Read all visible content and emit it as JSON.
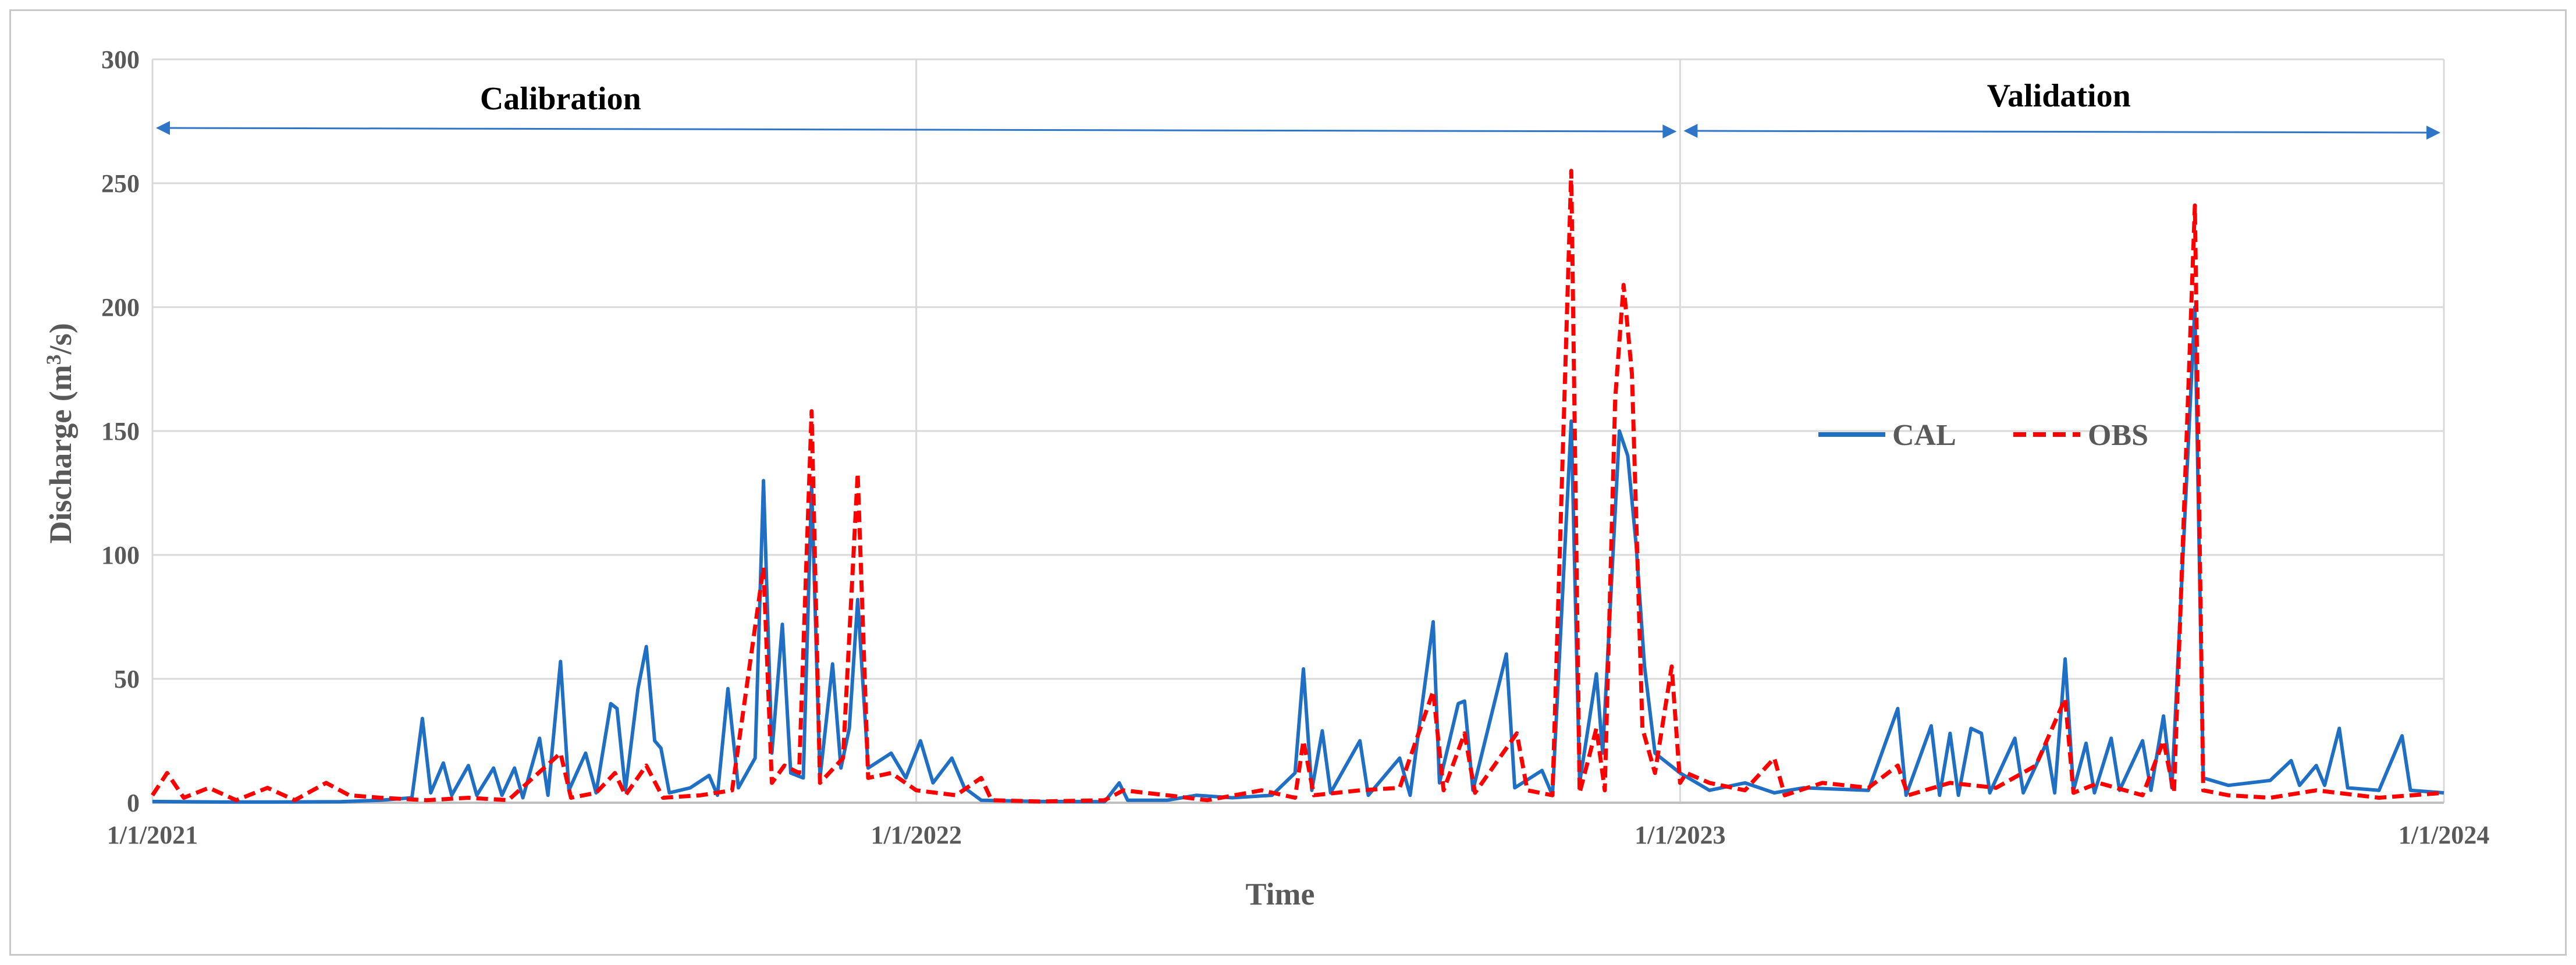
{
  "chart_data": {
    "type": "line",
    "xlabel": "Time",
    "ylabel_main": "Discharge (m",
    "ylabel_sup": "3",
    "ylabel_tail": "/s)",
    "ylim": [
      0,
      300
    ],
    "yticks": [
      0,
      50,
      100,
      150,
      200,
      250,
      300
    ],
    "xlim": [
      "2021-01-01",
      "2024-01-01"
    ],
    "xticks": [
      {
        "date": "2021-01-01",
        "label": "1/1/2021"
      },
      {
        "date": "2022-01-01",
        "label": "1/1/2022"
      },
      {
        "date": "2023-01-01",
        "label": "1/1/2023"
      },
      {
        "date": "2024-01-01",
        "label": "1/1/2024"
      }
    ],
    "grid": true,
    "legend_position": "right-middle",
    "periods": [
      {
        "label": "Calibration",
        "start": "2021-01-01",
        "end": "2023-01-01"
      },
      {
        "label": "Validation",
        "start": "2023-01-01",
        "end": "2024-01-01"
      }
    ],
    "series": [
      {
        "name": "CAL",
        "color": "#1f6fc5",
        "style": "solid",
        "points": [
          [
            "2021-01-01",
            0.5
          ],
          [
            "2021-02-01",
            0.3
          ],
          [
            "2021-03-01",
            0.3
          ],
          [
            "2021-04-01",
            0.4
          ],
          [
            "2021-04-20",
            1
          ],
          [
            "2021-05-05",
            2
          ],
          [
            "2021-05-10",
            34
          ],
          [
            "2021-05-14",
            4
          ],
          [
            "2021-05-20",
            16
          ],
          [
            "2021-05-24",
            3
          ],
          [
            "2021-06-01",
            15
          ],
          [
            "2021-06-05",
            3
          ],
          [
            "2021-06-13",
            14
          ],
          [
            "2021-06-17",
            3
          ],
          [
            "2021-06-23",
            14
          ],
          [
            "2021-06-27",
            2
          ],
          [
            "2021-07-05",
            26
          ],
          [
            "2021-07-09",
            3
          ],
          [
            "2021-07-15",
            57
          ],
          [
            "2021-07-19",
            5
          ],
          [
            "2021-07-27",
            20
          ],
          [
            "2021-08-01",
            4
          ],
          [
            "2021-08-08",
            40
          ],
          [
            "2021-08-11",
            38
          ],
          [
            "2021-08-15",
            5
          ],
          [
            "2021-08-21",
            46
          ],
          [
            "2021-08-25",
            63
          ],
          [
            "2021-08-29",
            25
          ],
          [
            "2021-09-01",
            22
          ],
          [
            "2021-09-05",
            4
          ],
          [
            "2021-09-15",
            6
          ],
          [
            "2021-09-24",
            11
          ],
          [
            "2021-09-28",
            3
          ],
          [
            "2021-10-03",
            46
          ],
          [
            "2021-10-08",
            6
          ],
          [
            "2021-10-16",
            18
          ],
          [
            "2021-10-20",
            130
          ],
          [
            "2021-10-24",
            20
          ],
          [
            "2021-10-29",
            72
          ],
          [
            "2021-11-02",
            12
          ],
          [
            "2021-11-08",
            10
          ],
          [
            "2021-11-12",
            128
          ],
          [
            "2021-11-16",
            10
          ],
          [
            "2021-11-22",
            56
          ],
          [
            "2021-11-26",
            14
          ],
          [
            "2021-11-30",
            30
          ],
          [
            "2021-12-04",
            82
          ],
          [
            "2021-12-09",
            14
          ],
          [
            "2021-12-20",
            20
          ],
          [
            "2021-12-27",
            10
          ],
          [
            "2022-01-03",
            25
          ],
          [
            "2022-01-09",
            8
          ],
          [
            "2022-01-18",
            18
          ],
          [
            "2022-01-24",
            6
          ],
          [
            "2022-02-01",
            1
          ],
          [
            "2022-03-01",
            0.5
          ],
          [
            "2022-04-01",
            0.4
          ],
          [
            "2022-04-08",
            8
          ],
          [
            "2022-04-12",
            1
          ],
          [
            "2022-05-01",
            1
          ],
          [
            "2022-05-15",
            3
          ],
          [
            "2022-06-01",
            2
          ],
          [
            "2022-06-20",
            3
          ],
          [
            "2022-07-01",
            12
          ],
          [
            "2022-07-05",
            54
          ],
          [
            "2022-07-09",
            5
          ],
          [
            "2022-07-14",
            29
          ],
          [
            "2022-07-18",
            4
          ],
          [
            "2022-08-01",
            25
          ],
          [
            "2022-08-05",
            3
          ],
          [
            "2022-08-20",
            18
          ],
          [
            "2022-08-25",
            3
          ],
          [
            "2022-09-05",
            73
          ],
          [
            "2022-09-08",
            8
          ],
          [
            "2022-09-17",
            40
          ],
          [
            "2022-09-20",
            41
          ],
          [
            "2022-09-24",
            5
          ],
          [
            "2022-10-10",
            60
          ],
          [
            "2022-10-14",
            6
          ],
          [
            "2022-10-27",
            13
          ],
          [
            "2022-11-01",
            3
          ],
          [
            "2022-11-10",
            154
          ],
          [
            "2022-11-14",
            8
          ],
          [
            "2022-11-22",
            52
          ],
          [
            "2022-11-25",
            20
          ],
          [
            "2022-12-03",
            150
          ],
          [
            "2022-12-07",
            140
          ],
          [
            "2022-12-11",
            104
          ],
          [
            "2022-12-15",
            55
          ],
          [
            "2022-12-20",
            20
          ],
          [
            "2023-01-01",
            12
          ],
          [
            "2023-01-15",
            5
          ],
          [
            "2023-02-01",
            8
          ],
          [
            "2023-02-15",
            4
          ],
          [
            "2023-03-01",
            6
          ],
          [
            "2023-04-01",
            5
          ],
          [
            "2023-04-15",
            38
          ],
          [
            "2023-04-19",
            3
          ],
          [
            "2023-05-01",
            31
          ],
          [
            "2023-05-05",
            3
          ],
          [
            "2023-05-10",
            28
          ],
          [
            "2023-05-14",
            3
          ],
          [
            "2023-05-20",
            30
          ],
          [
            "2023-05-25",
            28
          ],
          [
            "2023-05-29",
            4
          ],
          [
            "2023-06-10",
            26
          ],
          [
            "2023-06-14",
            4
          ],
          [
            "2023-06-25",
            24
          ],
          [
            "2023-06-29",
            4
          ],
          [
            "2023-07-04",
            58
          ],
          [
            "2023-07-08",
            5
          ],
          [
            "2023-07-14",
            24
          ],
          [
            "2023-07-18",
            4
          ],
          [
            "2023-07-26",
            26
          ],
          [
            "2023-07-30",
            5
          ],
          [
            "2023-08-10",
            25
          ],
          [
            "2023-08-14",
            5
          ],
          [
            "2023-08-20",
            35
          ],
          [
            "2023-08-24",
            6
          ],
          [
            "2023-09-04",
            200
          ],
          [
            "2023-09-08",
            10
          ],
          [
            "2023-09-20",
            7
          ],
          [
            "2023-10-10",
            9
          ],
          [
            "2023-10-20",
            17
          ],
          [
            "2023-10-24",
            7
          ],
          [
            "2023-11-01",
            15
          ],
          [
            "2023-11-05",
            7
          ],
          [
            "2023-11-12",
            30
          ],
          [
            "2023-11-16",
            6
          ],
          [
            "2023-12-01",
            5
          ],
          [
            "2023-12-12",
            27
          ],
          [
            "2023-12-16",
            5
          ],
          [
            "2024-01-01",
            4
          ]
        ]
      },
      {
        "name": "OBS",
        "color": "#ff0000",
        "style": "dashed",
        "points": [
          [
            "2021-01-01",
            3
          ],
          [
            "2021-01-08",
            12
          ],
          [
            "2021-01-16",
            2
          ],
          [
            "2021-01-28",
            6
          ],
          [
            "2021-02-10",
            1
          ],
          [
            "2021-02-25",
            6
          ],
          [
            "2021-03-10",
            1
          ],
          [
            "2021-03-25",
            8
          ],
          [
            "2021-04-05",
            3
          ],
          [
            "2021-04-20",
            2
          ],
          [
            "2021-05-12",
            1
          ],
          [
            "2021-06-01",
            2
          ],
          [
            "2021-06-20",
            1
          ],
          [
            "2021-07-15",
            20
          ],
          [
            "2021-07-20",
            2
          ],
          [
            "2021-08-01",
            4
          ],
          [
            "2021-08-10",
            12
          ],
          [
            "2021-08-15",
            3
          ],
          [
            "2021-08-25",
            15
          ],
          [
            "2021-09-02",
            2
          ],
          [
            "2021-09-20",
            3
          ],
          [
            "2021-10-05",
            5
          ],
          [
            "2021-10-20",
            95
          ],
          [
            "2021-10-24",
            8
          ],
          [
            "2021-10-30",
            15
          ],
          [
            "2021-11-06",
            12
          ],
          [
            "2021-11-12",
            158
          ],
          [
            "2021-11-16",
            8
          ],
          [
            "2021-11-27",
            18
          ],
          [
            "2021-12-04",
            133
          ],
          [
            "2021-12-09",
            10
          ],
          [
            "2021-12-20",
            12
          ],
          [
            "2022-01-01",
            5
          ],
          [
            "2022-01-20",
            3
          ],
          [
            "2022-02-01",
            10
          ],
          [
            "2022-02-06",
            1
          ],
          [
            "2022-03-01",
            0.5
          ],
          [
            "2022-04-01",
            1
          ],
          [
            "2022-04-10",
            5
          ],
          [
            "2022-05-01",
            3
          ],
          [
            "2022-05-20",
            1
          ],
          [
            "2022-06-15",
            5
          ],
          [
            "2022-07-01",
            2
          ],
          [
            "2022-07-05",
            25
          ],
          [
            "2022-07-10",
            3
          ],
          [
            "2022-08-01",
            5
          ],
          [
            "2022-08-20",
            6
          ],
          [
            "2022-09-05",
            45
          ],
          [
            "2022-09-10",
            5
          ],
          [
            "2022-09-20",
            28
          ],
          [
            "2022-09-25",
            4
          ],
          [
            "2022-10-15",
            28
          ],
          [
            "2022-10-20",
            5
          ],
          [
            "2022-11-01",
            3
          ],
          [
            "2022-11-10",
            255
          ],
          [
            "2022-11-14",
            4
          ],
          [
            "2022-11-22",
            30
          ],
          [
            "2022-11-26",
            5
          ],
          [
            "2022-12-01",
            163
          ],
          [
            "2022-12-05",
            209
          ],
          [
            "2022-12-09",
            173
          ],
          [
            "2022-12-14",
            30
          ],
          [
            "2022-12-20",
            12
          ],
          [
            "2023-01-01",
            8
          ],
          [
            "2022-12-28",
            55
          ],
          [
            "2023-01-04",
            12
          ],
          [
            "2023-01-15",
            8
          ],
          [
            "2023-02-01",
            5
          ],
          [
            "2023-02-15",
            18
          ],
          [
            "2023-02-20",
            3
          ],
          [
            "2023-03-10",
            8
          ],
          [
            "2023-04-01",
            6
          ],
          [
            "2023-04-15",
            15
          ],
          [
            "2023-04-20",
            3
          ],
          [
            "2023-05-10",
            8
          ],
          [
            "2023-06-01",
            6
          ],
          [
            "2023-06-20",
            15
          ],
          [
            "2023-07-04",
            42
          ],
          [
            "2023-07-08",
            4
          ],
          [
            "2023-07-20",
            8
          ],
          [
            "2023-08-10",
            3
          ],
          [
            "2023-08-20",
            25
          ],
          [
            "2023-08-25",
            4
          ],
          [
            "2023-09-04",
            241
          ],
          [
            "2023-09-08",
            5
          ],
          [
            "2023-09-20",
            3
          ],
          [
            "2023-10-10",
            2
          ],
          [
            "2023-11-01",
            5
          ],
          [
            "2023-12-01",
            2
          ],
          [
            "2024-01-01",
            4
          ]
        ]
      }
    ]
  }
}
